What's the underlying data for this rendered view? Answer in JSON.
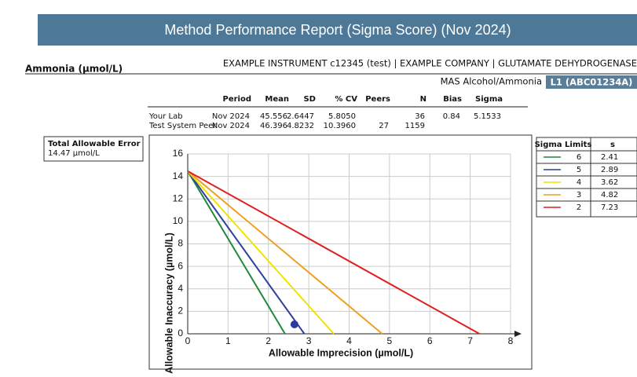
{
  "header": {
    "title": "Method Performance Report (Sigma Score) (Nov 2024)"
  },
  "analyte": "Ammonia (µmol/L)",
  "instrument": "EXAMPLE INSTRUMENT c12345 (test) | EXAMPLE COMPANY | GLUTAMATE DEHYDROGENASE",
  "control": "MAS Alcohol/Ammonia",
  "lot": "L1 (ABC01234A)",
  "stats": {
    "headers": [
      "Period",
      "Mean",
      "SD",
      "% CV",
      "Peers",
      "N",
      "Bias",
      "Sigma"
    ],
    "rows": [
      [
        "Your Lab",
        "Nov 2024",
        "45.556",
        "2.6447",
        "5.8050",
        null,
        "36",
        "0.84",
        "5.1533"
      ],
      [
        "Test System Peer",
        "Nov 2024",
        "46.396",
        "4.8232",
        "10.3960",
        "27",
        "1159",
        null,
        null
      ]
    ]
  },
  "tae": {
    "label": "Total Allowable Error",
    "value": "14.47 µmol/L"
  },
  "limits": {
    "headers": [
      "Sigma Limits",
      "s"
    ]
  },
  "chart_data": {
    "type": "line",
    "x_label": "Allowable Imprecision (µmol/L)",
    "y_label": "Allowable Inaccuracy (µmol/L)",
    "xlim": [
      0,
      8
    ],
    "ylim": [
      0,
      16
    ],
    "xticks": [
      0,
      1,
      2,
      3,
      4,
      5,
      6,
      7,
      8
    ],
    "yticks": [
      0,
      2,
      4,
      6,
      8,
      10,
      12,
      14,
      16
    ],
    "grid": true,
    "series": [
      {
        "name": "6",
        "color": "#1e8a3c",
        "x": [
          0,
          2.41
        ],
        "values": [
          14.47,
          0
        ]
      },
      {
        "name": "5",
        "color": "#2f3f9e",
        "x": [
          0,
          2.89
        ],
        "values": [
          14.47,
          0
        ]
      },
      {
        "name": "4",
        "color": "#f2e200",
        "x": [
          0,
          3.62
        ],
        "values": [
          14.47,
          0
        ]
      },
      {
        "name": "3",
        "color": "#f0a020",
        "x": [
          0,
          4.82
        ],
        "values": [
          14.47,
          0
        ]
      },
      {
        "name": "2",
        "color": "#e02020",
        "x": [
          0,
          7.23
        ],
        "values": [
          14.47,
          0
        ]
      }
    ],
    "point": {
      "x": 2.6447,
      "y": 0.84,
      "color": "#2c3a9c"
    }
  }
}
